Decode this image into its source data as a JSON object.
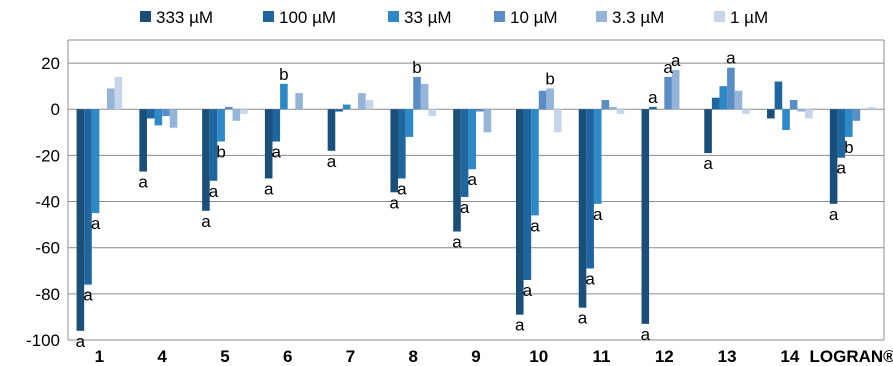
{
  "chart_data": {
    "type": "bar",
    "categories": [
      "1",
      "4",
      "5",
      "6",
      "7",
      "8",
      "9",
      "10",
      "11",
      "12",
      "13",
      "14",
      "LOGRAN®"
    ],
    "ylim": [
      -100,
      30
    ],
    "yticks": [
      -100,
      -80,
      -60,
      -40,
      -20,
      0,
      20
    ],
    "grid": true,
    "legend_position": "top",
    "series": [
      {
        "name": "333 µM",
        "color": "#1a4f7a",
        "values": [
          -96,
          -27,
          -44,
          -30,
          -18,
          -36,
          -53,
          -89,
          -86,
          -93,
          -19,
          -4,
          -41
        ]
      },
      {
        "name": "100 µM",
        "color": "#1f66a0",
        "values": [
          -76,
          -4,
          -31,
          -14,
          -1,
          -30,
          -38,
          -74,
          -69,
          1,
          5,
          12,
          -21
        ]
      },
      {
        "name": "33 µM",
        "color": "#2d8ac7",
        "values": [
          -45,
          -7,
          -14,
          11,
          2,
          -12,
          -26,
          -46,
          -41,
          0,
          10,
          -9,
          -12
        ]
      },
      {
        "name": "10 µM",
        "color": "#5a8dc5",
        "values": [
          0,
          -3,
          1,
          0,
          0,
          14,
          -1,
          8,
          4,
          14,
          18,
          4,
          -5
        ]
      },
      {
        "name": "3.3 µM",
        "color": "#94b4d8",
        "values": [
          9,
          -8,
          -5,
          7,
          7,
          11,
          -10,
          9,
          1,
          17,
          8,
          -1,
          0
        ]
      },
      {
        "name": "1 µM",
        "color": "#c6d6ea",
        "values": [
          14,
          0,
          -2,
          0,
          4,
          -3,
          0,
          -10,
          -2,
          0,
          -2,
          -4,
          1
        ]
      }
    ],
    "annotations": [
      {
        "category": "1",
        "series": "333 µM",
        "text": "a"
      },
      {
        "category": "1",
        "series": "100 µM",
        "text": "a"
      },
      {
        "category": "1",
        "series": "33 µM",
        "text": "a"
      },
      {
        "category": "4",
        "series": "333 µM",
        "text": "a"
      },
      {
        "category": "5",
        "series": "333 µM",
        "text": "a"
      },
      {
        "category": "5",
        "series": "100 µM",
        "text": "a"
      },
      {
        "category": "5",
        "series": "33 µM",
        "text": "b"
      },
      {
        "category": "6",
        "series": "333 µM",
        "text": "a"
      },
      {
        "category": "6",
        "series": "100 µM",
        "text": "a"
      },
      {
        "category": "6",
        "series": "33 µM",
        "text": "b"
      },
      {
        "category": "7",
        "series": "333 µM",
        "text": "a"
      },
      {
        "category": "8",
        "series": "333 µM",
        "text": "a"
      },
      {
        "category": "8",
        "series": "100 µM",
        "text": "a"
      },
      {
        "category": "8",
        "series": "10 µM",
        "text": "b"
      },
      {
        "category": "9",
        "series": "333 µM",
        "text": "a"
      },
      {
        "category": "9",
        "series": "100 µM",
        "text": "a"
      },
      {
        "category": "9",
        "series": "33 µM",
        "text": "a"
      },
      {
        "category": "10",
        "series": "333 µM",
        "text": "a"
      },
      {
        "category": "10",
        "series": "100 µM",
        "text": "a"
      },
      {
        "category": "10",
        "series": "33 µM",
        "text": "a"
      },
      {
        "category": "10",
        "series": "3.3 µM",
        "text": "b"
      },
      {
        "category": "11",
        "series": "333 µM",
        "text": "a"
      },
      {
        "category": "11",
        "series": "100 µM",
        "text": "a"
      },
      {
        "category": "11",
        "series": "33 µM",
        "text": "a"
      },
      {
        "category": "12",
        "series": "333 µM",
        "text": "a"
      },
      {
        "category": "12",
        "series": "100 µM",
        "text": "a"
      },
      {
        "category": "12",
        "series": "10 µM",
        "text": "a"
      },
      {
        "category": "12",
        "series": "3.3 µM",
        "text": "a"
      },
      {
        "category": "13",
        "series": "333 µM",
        "text": "a"
      },
      {
        "category": "13",
        "series": "10 µM",
        "text": "a"
      },
      {
        "category": "LOGRAN®",
        "series": "333 µM",
        "text": "a"
      },
      {
        "category": "LOGRAN®",
        "series": "100 µM",
        "text": "a"
      },
      {
        "category": "LOGRAN®",
        "series": "33 µM",
        "text": "b"
      }
    ]
  }
}
